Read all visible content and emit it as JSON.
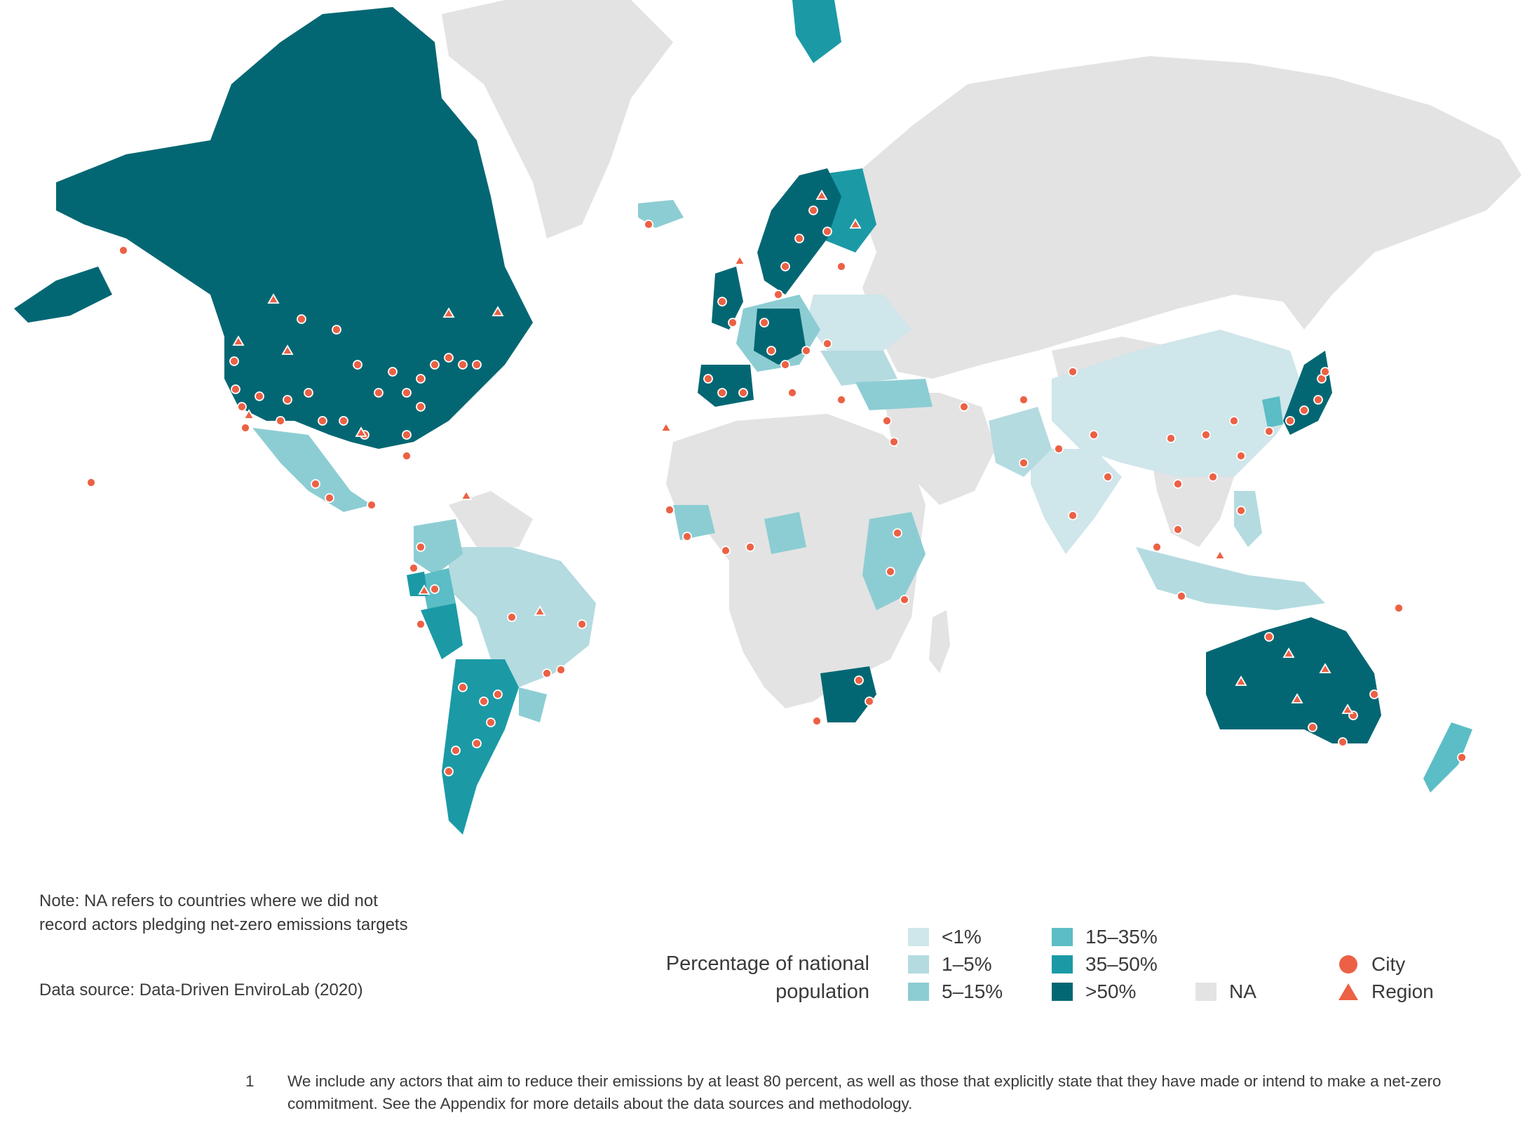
{
  "colors": {
    "lt1": "#cfe6ea",
    "p1_5": "#b4dbe0",
    "p5_15": "#8ccdd3",
    "p15_35": "#5bbdc6",
    "p35_50": "#1b9aa6",
    "gt50": "#036773",
    "na": "#e3e3e3",
    "city": "#ec6145",
    "region": "#ec6145"
  },
  "map": {
    "layers": [
      {
        "id": "na",
        "color": "#e3e3e3",
        "regions": [
          "greenland",
          "russia",
          "africa",
          "middle-east",
          "southeast-asia-mainland",
          "madagascar",
          "north-africa-west",
          "mongolia-kazakh"
        ]
      },
      {
        "id": "lt1",
        "color": "#cfe6ea",
        "regions": [
          "eastern-europe",
          "china",
          "india"
        ]
      },
      {
        "id": "p1_5",
        "color": "#b4dbe0",
        "regions": [
          "indonesia",
          "south-asia-west",
          "brazil",
          "philippines",
          "ukraine"
        ]
      },
      {
        "id": "p5_15",
        "color": "#8ccdd3",
        "regions": [
          "mexico",
          "colombia",
          "uruguay",
          "central-europe",
          "west-africa",
          "east-africa",
          "iceland",
          "turkey-area"
        ]
      },
      {
        "id": "p15_35",
        "color": "#5bbdc6",
        "regions": [
          "peru-north",
          "korea",
          "new-zealand"
        ]
      },
      {
        "id": "p35_50",
        "color": "#1b9aa6",
        "regions": [
          "argentina",
          "peru",
          "ecuador",
          "svalbard",
          "finland-baltic"
        ]
      },
      {
        "id": "gt50",
        "color": "#036773",
        "regions": [
          "canada-usa",
          "alaska",
          "australia",
          "south-africa",
          "scandinavia",
          "uk",
          "iberia",
          "japan",
          "western-europe"
        ]
      }
    ]
  },
  "markers": {
    "legend_city": "City",
    "legend_region": "Region"
  },
  "legend": {
    "title_line1": "Percentage of national",
    "title_line2": "population",
    "categories": [
      {
        "label": "<1%",
        "color": "#cfe6ea"
      },
      {
        "label": "1–5%",
        "color": "#b4dbe0"
      },
      {
        "label": "5–15%",
        "color": "#8ccdd3"
      },
      {
        "label": "15–35%",
        "color": "#5bbdc6"
      },
      {
        "label": "35–50%",
        "color": "#1b9aa6"
      },
      {
        "label": ">50%",
        "color": "#036773"
      },
      {
        "label": "NA",
        "color": "#e3e3e3"
      }
    ]
  },
  "note": {
    "line1": "Note: NA refers to countries where we did not",
    "line2": "record actors pledging net-zero emissions targets"
  },
  "source": "Data source: Data-Driven EnviroLab (2020)",
  "footnote": {
    "number": "1",
    "text": "We include any actors that aim to reduce their emissions by at least 80 percent, as well as those that explicitly state that they have made or intend to make a net-zero commitment. See the Appendix for more details about the data sources and methodology."
  }
}
